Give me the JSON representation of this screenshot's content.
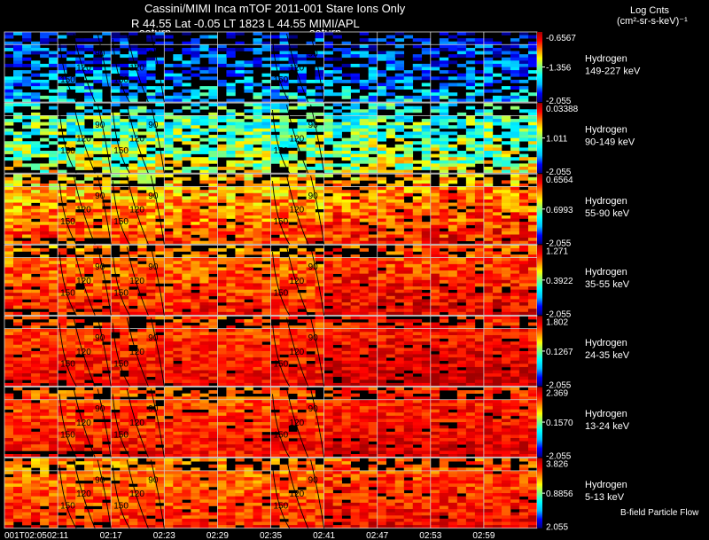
{
  "header": {
    "title": "Cassini/MIMI Inca mTOF  2011-001    Stare    Ions Only",
    "line2": "R          44.55 Lat -0.05 LT 1823 L          44.55  MIMI/APL",
    "units_title": "Log Cnts",
    "units_sub": "(cm²-sr-s-keV)⁻¹",
    "saturn_labels": [
      "saturn",
      "saturn"
    ]
  },
  "footer": {
    "flow_label": "B-field Particle Flow"
  },
  "chart_data": {
    "type": "heatmap",
    "title": "Cassini/MIMI Inca mTOF 2011-001 Stare Ions Only",
    "time_labels": [
      "001T02:05",
      "02:11",
      "02:17",
      "02:23",
      "02:29",
      "02:35",
      "02:41",
      "02:47",
      "02:53",
      "02:59"
    ],
    "contour_levels": [
      "90",
      "120",
      "150"
    ],
    "colormap": [
      "#000080",
      "#0000ff",
      "#00bfff",
      "#00ffff",
      "#80ff80",
      "#ffff00",
      "#ff8000",
      "#ff0000",
      "#a00000"
    ],
    "rows": [
      {
        "species": "Hydrogen",
        "energy": "149-227 keV",
        "cb_max": "-0.6567",
        "cb_mid": "-1.356",
        "cb_min": "-2.055",
        "level": 0.2,
        "spread": 0.38
      },
      {
        "species": "Hydrogen",
        "energy": "90-149 keV",
        "cb_max": "0.03388",
        "cb_mid": "1.011",
        "cb_min": "-2.055",
        "level": 0.48,
        "spread": 0.34
      },
      {
        "species": "Hydrogen",
        "energy": "55-90 keV",
        "cb_max": "0.6564",
        "cb_mid": "0.6993",
        "cb_min": "-2.055",
        "level": 0.72,
        "spread": 0.28
      },
      {
        "species": "Hydrogen",
        "energy": "35-55 keV",
        "cb_max": "1.271",
        "cb_mid": "0.3922",
        "cb_min": "-2.055",
        "level": 0.79,
        "spread": 0.22
      },
      {
        "species": "Hydrogen",
        "energy": "24-35 keV",
        "cb_max": "1.802",
        "cb_mid": "0.1267",
        "cb_min": "-2.055",
        "level": 0.84,
        "spread": 0.18
      },
      {
        "species": "Hydrogen",
        "energy": "13-24 keV",
        "cb_max": "2.369",
        "cb_mid": "0.1570",
        "cb_min": "-2.055",
        "level": 0.82,
        "spread": 0.18
      },
      {
        "species": "Hydrogen",
        "energy": "5-13 keV",
        "cb_max": "3.826",
        "cb_mid": "0.8856",
        "cb_min": "2.055",
        "level": 0.78,
        "spread": 0.2
      }
    ]
  }
}
